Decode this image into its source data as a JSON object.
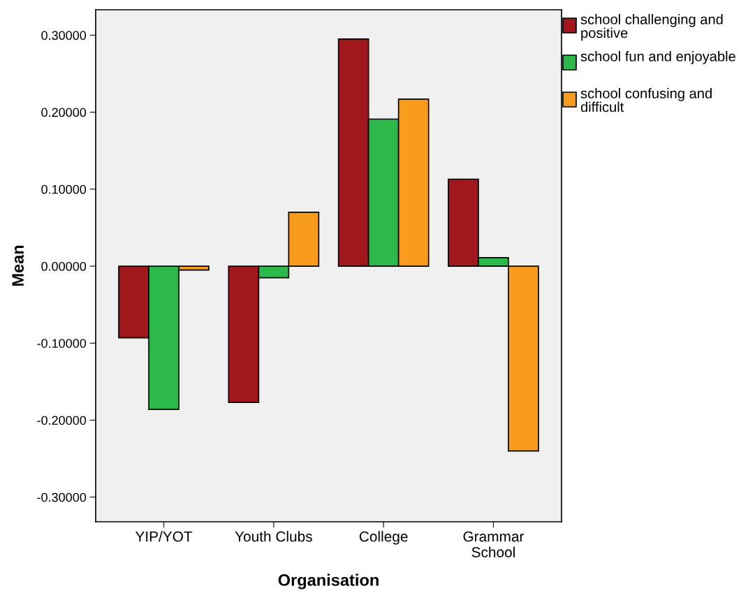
{
  "chart_data": {
    "type": "bar",
    "xlabel": "Organisation",
    "ylabel": "Mean",
    "categories": [
      "YIP/YOT",
      "Youth Clubs",
      "College",
      "Grammar\nSchool"
    ],
    "series": [
      {
        "name": "school challenging and positive",
        "color": "#a0171c",
        "values": [
          -0.093,
          -0.177,
          0.295,
          0.113
        ]
      },
      {
        "name": "school fun and enjoyable",
        "color": "#2db84b",
        "values": [
          -0.186,
          -0.015,
          0.191,
          0.011
        ]
      },
      {
        "name": "school confusing and difficult",
        "color": "#f99c1e",
        "values": [
          -0.005,
          0.07,
          0.217,
          -0.24
        ]
      }
    ],
    "ylim": [
      -0.332,
      0.333
    ],
    "yticks": [
      {
        "value": -0.3,
        "label": "-0.30000"
      },
      {
        "value": -0.2,
        "label": "-0.20000"
      },
      {
        "value": -0.1,
        "label": "-0.10000"
      },
      {
        "value": 0,
        "label": "0.00000"
      },
      {
        "value": 0.1,
        "label": "0.10000"
      },
      {
        "value": 0.2,
        "label": "0.20000"
      },
      {
        "value": 0.3,
        "label": "0.30000"
      }
    ],
    "grid": false,
    "legend": "top right"
  }
}
